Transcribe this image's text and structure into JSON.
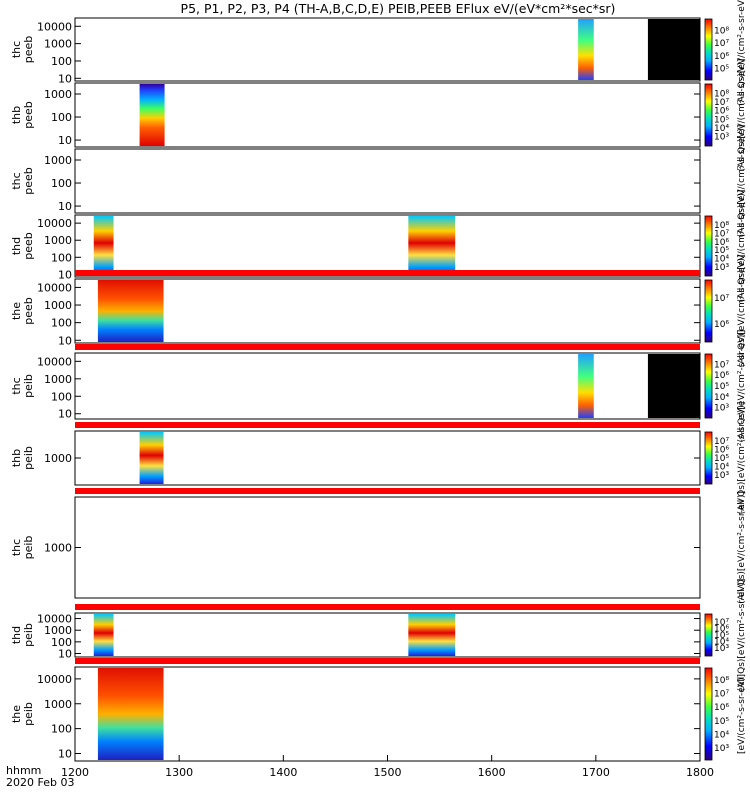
{
  "chart_data": {
    "type": "heatmap",
    "title": "P5, P1, P2, P3, P4 (TH-A,B,C,D,E) PEIB,PEEB EFlux eV/(eV*cm²*sec*sr)",
    "xlim": [
      1200,
      1800
    ],
    "x_ticks": [
      "1200",
      "1300",
      "1400",
      "1500",
      "1600",
      "1700",
      "1800"
    ],
    "x_label_line1": "hhmm",
    "x_label_line2": "2020 Feb 03",
    "panels": [
      {
        "name": "thc peeb (top)",
        "label1": "thc",
        "label2": "peeb",
        "y_ticks": [
          "10",
          "100",
          "1000",
          "10000"
        ],
        "ylim": [
          7,
          30000
        ],
        "colorbar_ticks": [
          "10⁵",
          "10⁶",
          "10⁷",
          "10⁸"
        ],
        "cbar_label": "(All Qs)[eV/(cm²-s-sr-eV)]",
        "data_intervals": [
          [
            1683,
            1698
          ],
          [
            1750,
            1800
          ]
        ],
        "saturated_intervals": [
          [
            1750,
            1800
          ]
        ],
        "red_band": false
      },
      {
        "name": "thb peeb",
        "label1": "thb",
        "label2": "peeb",
        "y_ticks": [
          "10",
          "100",
          "1000"
        ],
        "ylim": [
          5,
          3000
        ],
        "colorbar_ticks": [
          "10³",
          "10⁴",
          "10⁵",
          "10⁶",
          "10⁷",
          "10⁸"
        ],
        "cbar_label": "(All Qs)[eV/(cm²-s-sr-eV)]",
        "data_intervals": [
          [
            1262,
            1286
          ]
        ],
        "saturated_intervals": [],
        "red_band": false
      },
      {
        "name": "thc peeb",
        "label1": "thc",
        "label2": "peeb",
        "y_ticks": [
          "10",
          "100",
          "1000"
        ],
        "ylim": [
          5,
          3000
        ],
        "colorbar_ticks": [],
        "cbar_label": "(All Qs)[eV/(cm²-s-sr-eV)]",
        "data_intervals": [],
        "saturated_intervals": [],
        "red_band": false
      },
      {
        "name": "thd peeb",
        "label1": "thd",
        "label2": "peeb",
        "y_ticks": [
          "10",
          "100",
          "1000",
          "10000"
        ],
        "ylim": [
          7,
          30000
        ],
        "colorbar_ticks": [
          "10³",
          "10⁴",
          "10⁵",
          "10⁶",
          "10⁷",
          "10⁸"
        ],
        "cbar_label": "(All Qs)[eV/(cm²-s-sr-eV)]",
        "data_intervals": [
          [
            1218,
            1237
          ],
          [
            1520,
            1565
          ]
        ],
        "saturated_intervals": [],
        "red_band": false
      },
      {
        "name": "the peeb",
        "label1": "the",
        "label2": "peeb",
        "y_ticks": [
          "10",
          "100",
          "1000",
          "10000"
        ],
        "ylim": [
          7,
          30000
        ],
        "colorbar_ticks": [
          "10⁶",
          "10⁷"
        ],
        "cbar_label": "(All Qs)[eV/(cm²-s-sr-eV)]",
        "data_intervals": [
          [
            1222,
            1285
          ]
        ],
        "saturated_intervals": [],
        "red_band": true
      },
      {
        "name": "thc peib",
        "label1": "thc",
        "label2": "peib",
        "y_ticks": [
          "10",
          "100",
          "1000",
          "10000"
        ],
        "ylim": [
          5,
          30000
        ],
        "colorbar_ticks": [
          "10³",
          "10⁴",
          "10⁵",
          "10⁶",
          "10⁷"
        ],
        "cbar_label": "(All Qs)[eV/(cm²-s-sr-eV)]",
        "data_intervals": [
          [
            1683,
            1698
          ],
          [
            1750,
            1800
          ]
        ],
        "saturated_intervals": [
          [
            1750,
            1800
          ]
        ],
        "red_band": true
      },
      {
        "name": "thb peib",
        "label1": "thb",
        "label2": "peib",
        "y_ticks": [
          "1000"
        ],
        "ylim": [
          100,
          10000
        ],
        "colorbar_ticks": [
          "10³",
          "10⁴",
          "10⁵",
          "10⁶",
          "10⁷"
        ],
        "cbar_label": "(All Qs)[eV/(cm²-s-sr-eV)]",
        "data_intervals": [
          [
            1262,
            1285
          ]
        ],
        "saturated_intervals": [],
        "red_band": true
      },
      {
        "name": "thc peib (empty)",
        "label1": "thc",
        "label2": "peib",
        "y_ticks": [
          "1000"
        ],
        "ylim": [
          100,
          10000
        ],
        "colorbar_ticks": [],
        "cbar_label": "(All Qs)[eV/(cm²-s-sr-eV)]",
        "data_intervals": [],
        "saturated_intervals": [],
        "red_band": true
      },
      {
        "name": "thd peib",
        "label1": "thd",
        "label2": "peib",
        "y_ticks": [
          "10",
          "100",
          "1000",
          "10000"
        ],
        "ylim": [
          5,
          30000
        ],
        "colorbar_ticks": [
          "10³",
          "10⁴",
          "10⁵",
          "10⁶",
          "10⁷"
        ],
        "cbar_label": "(All Qs)[eV/(cm²-s-sr-eV)]",
        "data_intervals": [
          [
            1218,
            1237
          ],
          [
            1520,
            1565
          ]
        ],
        "saturated_intervals": [],
        "red_band": true
      },
      {
        "name": "the peib",
        "label1": "the",
        "label2": "peib",
        "y_ticks": [
          "10",
          "100",
          "1000",
          "10000"
        ],
        "ylim": [
          5,
          30000
        ],
        "colorbar_ticks": [
          "10³",
          "10⁴",
          "10⁵",
          "10⁶",
          "10⁷",
          "10⁸"
        ],
        "cbar_label": "[eV/(cm²-s-sr-eV)]",
        "data_intervals": [
          [
            1222,
            1285
          ]
        ],
        "saturated_intervals": [],
        "red_band": true
      }
    ]
  }
}
